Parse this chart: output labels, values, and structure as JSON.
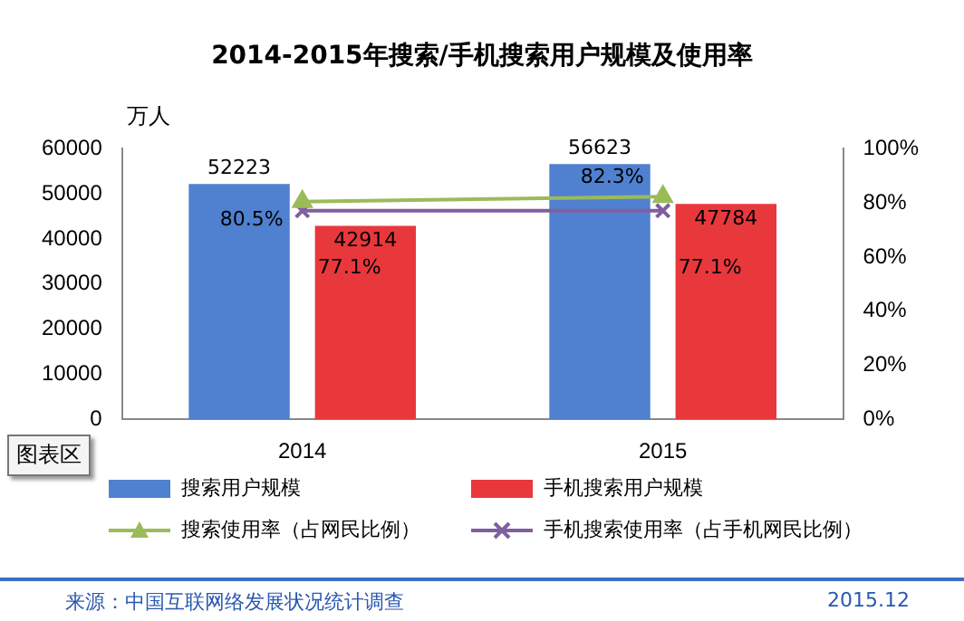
{
  "chart_data": {
    "type": "bar",
    "title": "2014-2015年搜索/手机搜索用户规模及使用率",
    "ylabel": "万人",
    "categories": [
      "2014",
      "2015"
    ],
    "series": [
      {
        "name": "搜索用户规模",
        "color": "#4f81d0",
        "values": [
          52223,
          56623
        ],
        "value_labels": [
          "52223",
          "56623"
        ]
      },
      {
        "name": "手机搜索用户规模",
        "color": "#e8383c",
        "values": [
          42914,
          47784
        ],
        "value_labels": [
          "42914",
          "47784"
        ]
      },
      {
        "name": "搜索使用率（占网民比例）",
        "type": "line",
        "axis": "y2",
        "color": "#9bbb59",
        "values": [
          80.5,
          82.3
        ],
        "value_labels": [
          "80.5%",
          "82.3%"
        ]
      },
      {
        "name": "手机搜索使用率（占手机网民比例）",
        "type": "line",
        "axis": "y2",
        "color": "#7f5f9f",
        "marker": "cross",
        "values": [
          77.1,
          77.1
        ],
        "value_labels": [
          "77.1%",
          "77.1%"
        ]
      }
    ],
    "ylim": [
      0,
      60000
    ],
    "yticks": [
      0,
      10000,
      20000,
      30000,
      40000,
      50000,
      60000
    ],
    "y2lim": [
      0,
      100
    ],
    "y2ticks": [
      {
        "value": 0,
        "label": "0%"
      },
      {
        "value": 20,
        "label": "20%"
      },
      {
        "value": 40,
        "label": "40%"
      },
      {
        "value": 60,
        "label": "60%"
      },
      {
        "value": 80,
        "label": "80%"
      },
      {
        "value": 100,
        "label": "100%"
      }
    ],
    "grid": false,
    "legend": "bottom",
    "marker": "triangle",
    "annotations": [
      "图表区",
      "来源：中国互联网络发展状况统计调查",
      "2015.12"
    ]
  }
}
